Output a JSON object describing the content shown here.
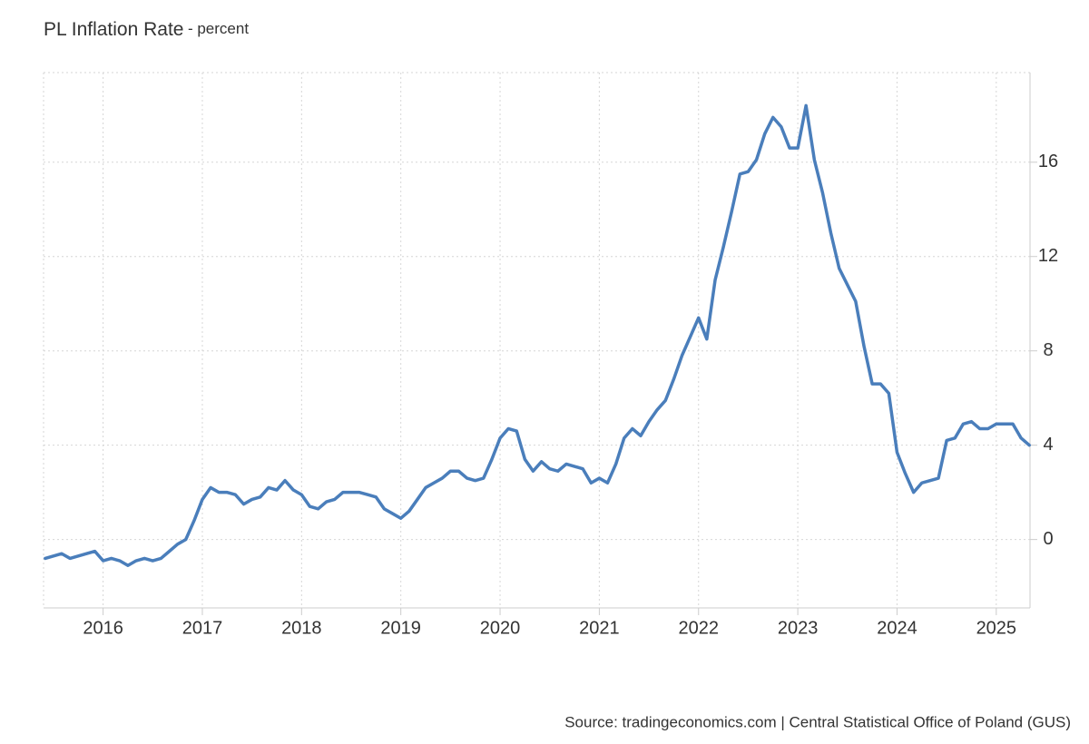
{
  "chart_data": {
    "type": "line",
    "title": "PL Inflation Rate",
    "subtitle": "- percent",
    "source": "Source: tradingeconomics.com | Central Statistical Office of Poland (GUS)",
    "x": [
      2015.417,
      2015.5,
      2015.583,
      2015.667,
      2015.75,
      2015.833,
      2015.917,
      2016,
      2016.083,
      2016.167,
      2016.25,
      2016.333,
      2016.417,
      2016.5,
      2016.583,
      2016.667,
      2016.75,
      2016.833,
      2016.917,
      2017,
      2017.083,
      2017.167,
      2017.25,
      2017.333,
      2017.417,
      2017.5,
      2017.583,
      2017.667,
      2017.75,
      2017.833,
      2017.917,
      2018,
      2018.083,
      2018.167,
      2018.25,
      2018.333,
      2018.417,
      2018.5,
      2018.583,
      2018.667,
      2018.75,
      2018.833,
      2018.917,
      2019,
      2019.083,
      2019.167,
      2019.25,
      2019.333,
      2019.417,
      2019.5,
      2019.583,
      2019.667,
      2019.75,
      2019.833,
      2019.917,
      2020,
      2020.083,
      2020.167,
      2020.25,
      2020.333,
      2020.417,
      2020.5,
      2020.583,
      2020.667,
      2020.75,
      2020.833,
      2020.917,
      2021,
      2021.083,
      2021.167,
      2021.25,
      2021.333,
      2021.417,
      2021.5,
      2021.583,
      2021.667,
      2021.75,
      2021.833,
      2021.917,
      2022,
      2022.083,
      2022.167,
      2022.25,
      2022.333,
      2022.417,
      2022.5,
      2022.583,
      2022.667,
      2022.75,
      2022.833,
      2022.917,
      2023,
      2023.083,
      2023.167,
      2023.25,
      2023.333,
      2023.417,
      2023.5,
      2023.583,
      2023.667,
      2023.75,
      2023.833,
      2023.917,
      2024,
      2024.083,
      2024.167,
      2024.25,
      2024.333,
      2024.417,
      2024.5,
      2024.583,
      2024.667,
      2024.75,
      2024.833,
      2024.917,
      2025,
      2025.083,
      2025.167,
      2025.25,
      2025.333
    ],
    "series": [
      {
        "name": "Inflation Rate",
        "color": "#4a7ebb",
        "values": [
          -0.8,
          -0.7,
          -0.6,
          -0.8,
          -0.7,
          -0.6,
          -0.5,
          -0.9,
          -0.8,
          -0.9,
          -1.1,
          -0.9,
          -0.8,
          -0.9,
          -0.8,
          -0.5,
          -0.2,
          0.0,
          0.8,
          1.7,
          2.2,
          2.0,
          2.0,
          1.9,
          1.5,
          1.7,
          1.8,
          2.2,
          2.1,
          2.5,
          2.1,
          1.9,
          1.4,
          1.3,
          1.6,
          1.7,
          2.0,
          2.0,
          2.0,
          1.9,
          1.8,
          1.3,
          1.1,
          0.9,
          1.2,
          1.7,
          2.2,
          2.4,
          2.6,
          2.9,
          2.9,
          2.6,
          2.5,
          2.6,
          3.4,
          4.3,
          4.7,
          4.6,
          3.4,
          2.9,
          3.3,
          3.0,
          2.9,
          3.2,
          3.1,
          3.0,
          2.4,
          2.6,
          2.4,
          3.2,
          4.3,
          4.7,
          4.4,
          5.0,
          5.5,
          5.9,
          6.8,
          7.8,
          8.6,
          9.4,
          8.5,
          11.0,
          12.4,
          13.9,
          15.5,
          15.6,
          16.1,
          17.2,
          17.9,
          17.5,
          16.6,
          16.6,
          18.4,
          16.1,
          14.7,
          13.0,
          11.5,
          10.8,
          10.1,
          8.2,
          6.6,
          6.6,
          6.2,
          3.7,
          2.8,
          2.0,
          2.4,
          2.5,
          2.6,
          4.2,
          4.3,
          4.9,
          5.0,
          4.7,
          4.7,
          4.9,
          4.9,
          4.9,
          4.3,
          4.0
        ]
      }
    ],
    "xlim": [
      2015.4,
      2025.34
    ],
    "xticks": [
      2016,
      2017,
      2018,
      2019,
      2020,
      2021,
      2022,
      2023,
      2024,
      2025
    ],
    "ylim": [
      -2.9,
      19.8
    ],
    "yticks": [
      0,
      4,
      8,
      12,
      16
    ],
    "grid": true
  }
}
